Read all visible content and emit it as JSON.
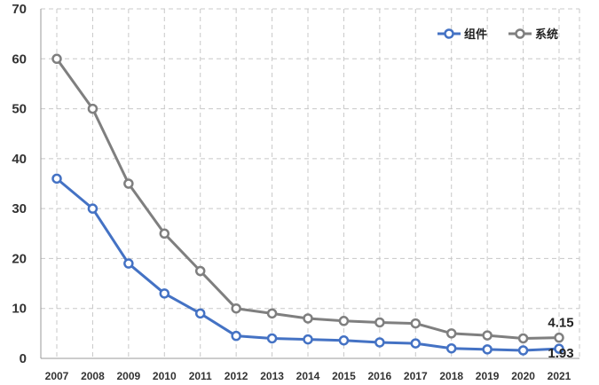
{
  "chart_data": {
    "type": "line",
    "title": "",
    "xlabel": "",
    "ylabel": "",
    "x": [
      "2007",
      "2008",
      "2009",
      "2010",
      "2011",
      "2012",
      "2013",
      "2014",
      "2015",
      "2016",
      "2017",
      "2018",
      "2019",
      "2020",
      "2021"
    ],
    "ylim": [
      0,
      70
    ],
    "yticks": [
      "0",
      "10",
      "20",
      "30",
      "40",
      "50",
      "60",
      "70"
    ],
    "grid": true,
    "legend_position": "top-right",
    "series": [
      {
        "name": "组件",
        "color": "#4472c4",
        "values": [
          36,
          30,
          19,
          13,
          9,
          4.5,
          4,
          3.8,
          3.6,
          3.2,
          3.0,
          2.0,
          1.8,
          1.6,
          1.93
        ]
      },
      {
        "name": "系统",
        "color": "#7f7f7f",
        "values": [
          60,
          50,
          35,
          25,
          17.5,
          10,
          9,
          8,
          7.5,
          7.2,
          7.0,
          5.0,
          4.6,
          4.0,
          4.15
        ]
      }
    ],
    "annotations": [
      {
        "text": "4.15",
        "series": 1,
        "index": 14
      },
      {
        "text": "1.93",
        "series": 0,
        "index": 14
      }
    ]
  }
}
